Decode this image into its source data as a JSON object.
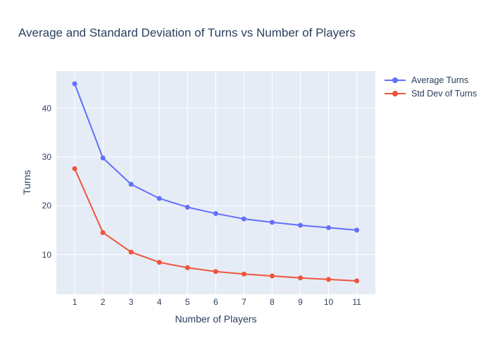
{
  "title": "Average and Standard Deviation of Turns vs Number of Players",
  "colors": {
    "text": "#2a3f5f",
    "plot_background": "#e5ecf6",
    "gridline": "#ffffff",
    "series_blue": "#636efa",
    "series_red": "#ef553b"
  },
  "legend": {
    "items": [
      {
        "label": "Average Turns",
        "color": "#636efa"
      },
      {
        "label": "Std Dev of Turns",
        "color": "#ef553b"
      }
    ]
  },
  "chart_data": {
    "type": "line",
    "title": "Average and Standard Deviation of Turns vs Number of Players",
    "xlabel": "Number of Players",
    "ylabel": "Turns",
    "x": [
      1,
      2,
      3,
      4,
      5,
      6,
      7,
      8,
      9,
      10,
      11
    ],
    "series": [
      {
        "name": "Average Turns",
        "color": "#636efa",
        "values": [
          45.0,
          29.8,
          24.4,
          21.5,
          19.7,
          18.4,
          17.3,
          16.6,
          16.0,
          15.5,
          15.0
        ]
      },
      {
        "name": "Std Dev of Turns",
        "color": "#ef553b",
        "values": [
          27.6,
          14.5,
          10.5,
          8.4,
          7.3,
          6.5,
          6.0,
          5.6,
          5.2,
          4.9,
          4.6
        ]
      }
    ],
    "x_ticks": [
      1,
      2,
      3,
      4,
      5,
      6,
      7,
      8,
      9,
      10,
      11
    ],
    "y_ticks": [
      10,
      20,
      30,
      40
    ],
    "x_range": [
      0.35,
      11.66
    ],
    "y_range": [
      1.85,
      47.6
    ],
    "grid": true,
    "legend_position": "outside-top-right",
    "marker_radius": 3.5,
    "line_width": 2
  }
}
